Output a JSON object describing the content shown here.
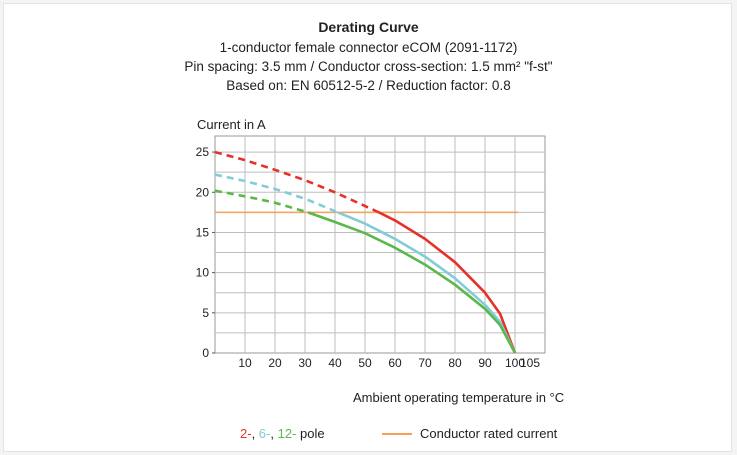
{
  "chart_data": {
    "type": "line",
    "title": "Derating Curve",
    "subtitles": [
      "1-conductor female connector eCOM (2091-1172)",
      "Pin spacing: 3.5 mm / Conductor cross-section: 1.5 mm² \"f-st\"",
      "Based on: EN 60512-5-2 / Reduction factor: 0.8"
    ],
    "xlabel": "Ambient operating temperature in °C",
    "ylabel": "Current in A",
    "xlim": [
      0,
      110
    ],
    "ylim": [
      0,
      27
    ],
    "x_ticks": [
      0,
      10,
      20,
      30,
      40,
      50,
      60,
      70,
      80,
      90,
      100,
      105
    ],
    "y_ticks": [
      0,
      5,
      10,
      15,
      20,
      25
    ],
    "grid": true,
    "series": [
      {
        "name": "2-",
        "color": "#e8302a",
        "x": [
          0,
          10,
          20,
          30,
          40,
          54,
          60,
          70,
          80,
          90,
          95,
          100
        ],
        "y": [
          25,
          24.0,
          22.8,
          21.5,
          20.0,
          17.6,
          16.5,
          14.2,
          11.3,
          7.5,
          4.9,
          0
        ],
        "dashed_until": 54
      },
      {
        "name": "6-",
        "color": "#82ccd8",
        "x": [
          0,
          10,
          20,
          30,
          41,
          50,
          60,
          70,
          80,
          90,
          95,
          100
        ],
        "y": [
          22.2,
          21.4,
          20.4,
          19.2,
          17.5,
          16.1,
          14.2,
          12.0,
          9.3,
          6.0,
          3.9,
          0
        ],
        "dashed_until": 41
      },
      {
        "name": "12-",
        "color": "#5cb84a",
        "x": [
          0,
          10,
          20,
          31,
          40,
          50,
          60,
          70,
          80,
          90,
          95,
          100
        ],
        "y": [
          20.2,
          19.5,
          18.7,
          17.5,
          16.3,
          14.9,
          13.1,
          11.0,
          8.5,
          5.5,
          3.5,
          0
        ],
        "dashed_until": 31
      }
    ],
    "reference_line": {
      "name": "Conductor rated current",
      "y": 17.5,
      "x": [
        0,
        101
      ],
      "color": "#f5a15a"
    },
    "legend": {
      "placement": "bottom",
      "pole_items": [
        "2-",
        "6-",
        "12-"
      ],
      "pole_suffix": "pole",
      "reference_label": "Conductor rated current"
    }
  }
}
